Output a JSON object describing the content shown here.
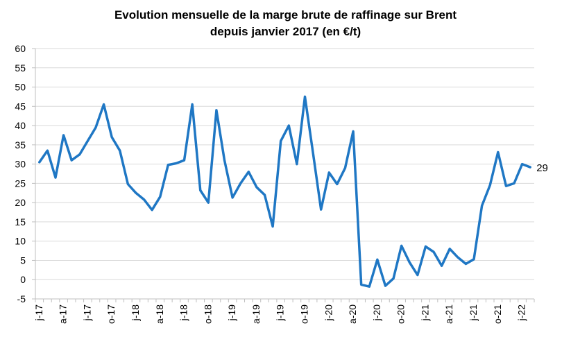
{
  "chart_data": {
    "type": "line",
    "title_line1": "Evolution mensuelle de la marge brute de raffinage sur Brent",
    "title_line2": "depuis janvier 2017 (en €/t)",
    "xlabel": "",
    "ylabel": "",
    "ylim": [
      -5,
      60
    ],
    "yticks": [
      -5,
      0,
      5,
      10,
      15,
      20,
      25,
      30,
      35,
      40,
      45,
      50,
      55,
      60
    ],
    "grid": true,
    "legend": "none",
    "x_tick_labels": [
      "j-17",
      "a-17",
      "j-17",
      "o-17",
      "j-18",
      "a-18",
      "j-18",
      "o-18",
      "j-19",
      "a-19",
      "j-19",
      "o-19",
      "j-20",
      "a-20",
      "j-20",
      "o-20",
      "j-21",
      "a-21",
      "j-21",
      "o-21",
      "j-22"
    ],
    "end_label": "29",
    "color": "#1f77c4",
    "series": [
      {
        "values": [
          30.5,
          33.5,
          26.5,
          37.5,
          31,
          32.5,
          36,
          39.5,
          45.5,
          37,
          33.5,
          24.8,
          22.5,
          20.8,
          18.1,
          21.5,
          29.8,
          30.2,
          31,
          45.5,
          23.2,
          20,
          44,
          31,
          21.3,
          25,
          28,
          24,
          22,
          13.8,
          36,
          40,
          30,
          47.5,
          33,
          18.2,
          27.8,
          24.8,
          29,
          38.5,
          -1.3,
          -1.8,
          5.2,
          -1.6,
          0.3,
          8.8,
          4.5,
          1.2,
          8.6,
          7.2,
          3.6,
          8,
          5.8,
          4.1,
          5.3,
          19.2,
          24.5,
          33.1,
          24.3,
          25,
          30,
          29.2
        ]
      }
    ]
  }
}
